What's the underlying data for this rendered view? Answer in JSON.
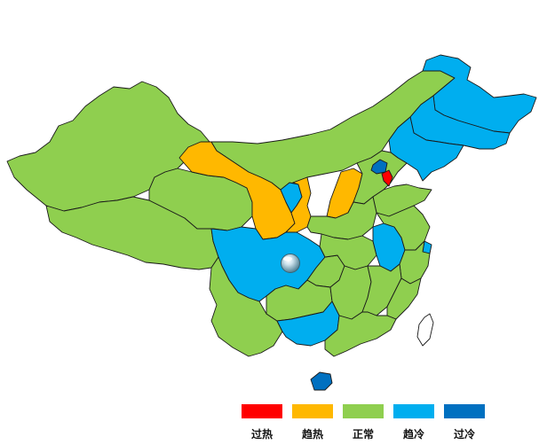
{
  "colors": {
    "overheat": "#ff0000",
    "warming": "#ffb800",
    "normal": "#8fcf4f",
    "cooling": "#00aeef",
    "overcool": "#0070c0",
    "taiwan": "#ffffff",
    "border": "#1a1a1a"
  },
  "legend": [
    {
      "key": "overheat",
      "label": "过热",
      "color": "#ff0000"
    },
    {
      "key": "warming",
      "label": "趋热",
      "color": "#ffb800"
    },
    {
      "key": "normal",
      "label": "正常",
      "color": "#8fcf4f"
    },
    {
      "key": "cooling",
      "label": "趋冷",
      "color": "#00aeef"
    },
    {
      "key": "overcool",
      "label": "过冷",
      "color": "#0070c0"
    }
  ],
  "regions": [
    {
      "name": "xinjiang",
      "status": "normal"
    },
    {
      "name": "tibet",
      "status": "normal"
    },
    {
      "name": "qinghai",
      "status": "normal"
    },
    {
      "name": "gansu",
      "status": "warming"
    },
    {
      "name": "inner-mongolia",
      "status": "normal"
    },
    {
      "name": "ningxia",
      "status": "cooling"
    },
    {
      "name": "shaanxi",
      "status": "warming"
    },
    {
      "name": "shanxi",
      "status": "warming"
    },
    {
      "name": "heilongjiang",
      "status": "cooling"
    },
    {
      "name": "jilin",
      "status": "cooling"
    },
    {
      "name": "liaoning",
      "status": "cooling"
    },
    {
      "name": "beijing",
      "status": "overcool"
    },
    {
      "name": "tianjin",
      "status": "overheat"
    },
    {
      "name": "hebei",
      "status": "normal"
    },
    {
      "name": "shandong",
      "status": "normal"
    },
    {
      "name": "henan",
      "status": "normal"
    },
    {
      "name": "sichuan",
      "status": "cooling"
    },
    {
      "name": "chongqing",
      "status": "normal"
    },
    {
      "name": "hubei",
      "status": "normal"
    },
    {
      "name": "anhui",
      "status": "cooling"
    },
    {
      "name": "jiangsu",
      "status": "normal"
    },
    {
      "name": "shanghai",
      "status": "cooling"
    },
    {
      "name": "zhejiang",
      "status": "normal"
    },
    {
      "name": "yunnan",
      "status": "normal"
    },
    {
      "name": "guizhou",
      "status": "normal"
    },
    {
      "name": "hunan",
      "status": "normal"
    },
    {
      "name": "jiangxi",
      "status": "normal"
    },
    {
      "name": "fujian",
      "status": "normal"
    },
    {
      "name": "guangxi",
      "status": "cooling"
    },
    {
      "name": "guangdong",
      "status": "normal"
    },
    {
      "name": "hainan",
      "status": "overcool"
    },
    {
      "name": "taiwan",
      "status": "none"
    }
  ]
}
